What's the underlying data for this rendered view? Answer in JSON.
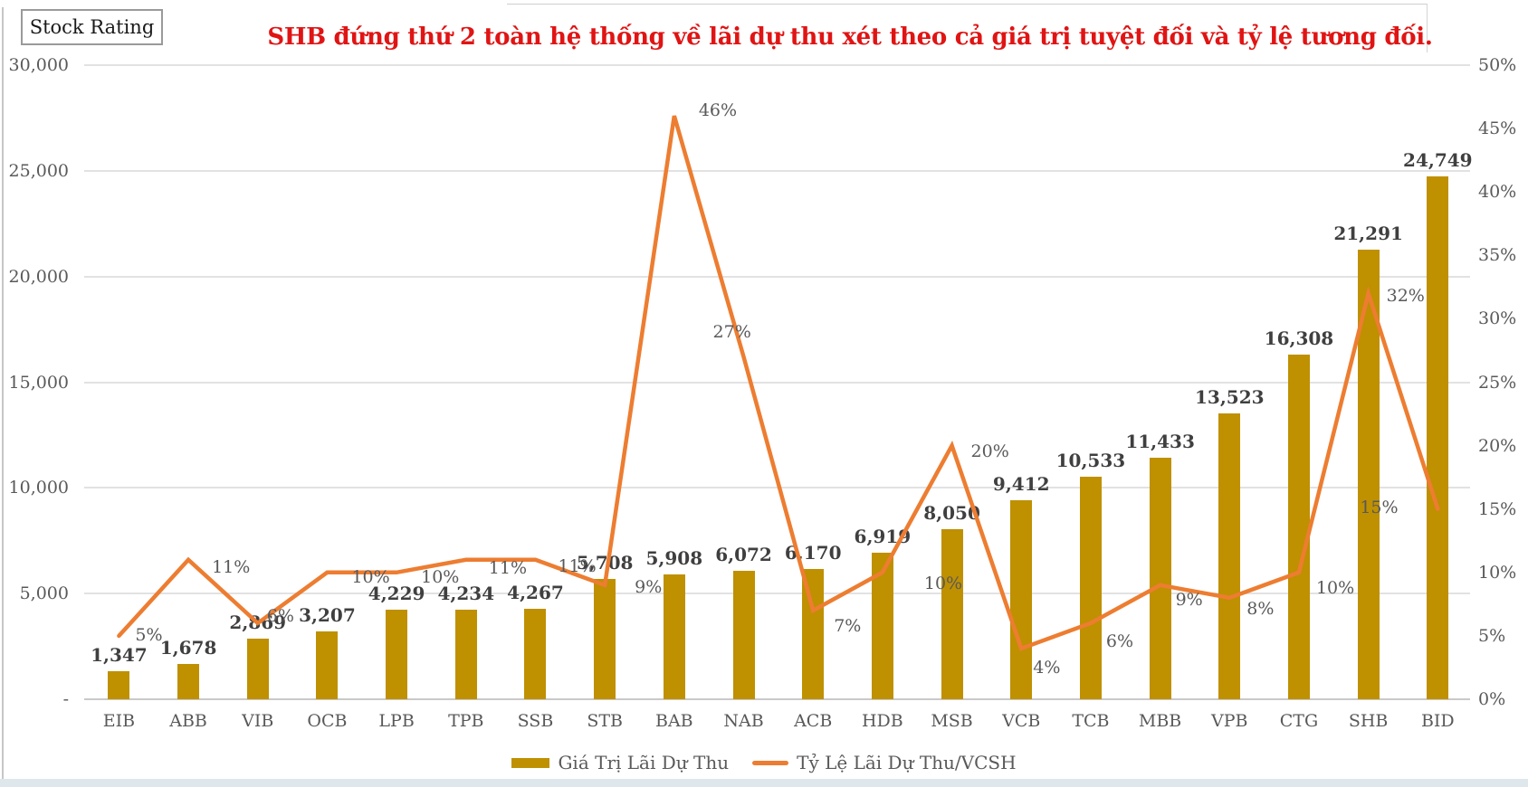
{
  "stock_rating_label": "Stock Rating",
  "title": "SHB đứng thứ 2 toàn hệ thống về lãi dự thu xét theo cả giá trị tuyệt đối và tỷ lệ tương đối.",
  "colors": {
    "bar": "#bf9000",
    "line": "#ed7d31",
    "title": "#e01414",
    "value_label": "#3f3f3f",
    "axis_label": "#595959",
    "gridline": "#e2e2e2",
    "bottom_strip": "#dee8ec"
  },
  "chart_data": {
    "type": "combo-bar-line",
    "title": "SHB đứng thứ 2 toàn hệ thống về lãi dự thu xét theo cả giá trị tuyệt đối và tỷ lệ tương đối.",
    "categories": [
      "EIB",
      "ABB",
      "VIB",
      "OCB",
      "LPB",
      "TPB",
      "SSB",
      "STB",
      "BAB",
      "NAB",
      "ACB",
      "HDB",
      "MSB",
      "VCB",
      "TCB",
      "MBB",
      "VPB",
      "CTG",
      "SHB",
      "BID"
    ],
    "series": [
      {
        "name": "Giá Trị Lãi Dự Thu",
        "type": "bar",
        "yaxis": "left",
        "color": "#bf9000",
        "values": [
          1347,
          1678,
          2869,
          3207,
          4229,
          4234,
          4267,
          5708,
          5908,
          6072,
          6170,
          6919,
          8050,
          9412,
          10533,
          11433,
          13523,
          16308,
          21291,
          24749
        ],
        "labels": [
          "1,347",
          "1,678",
          "2,869",
          "3,207",
          "4,229",
          "4,234",
          "4,267",
          "5,708",
          "5,908",
          "6,072",
          "6,170",
          "6,919",
          "8,050",
          "9,412",
          "10,533",
          "11,433",
          "13,523",
          "16,308",
          "21,291",
          "24,749"
        ]
      },
      {
        "name": "Tỷ Lệ Lãi Dự Thu/VCSH",
        "type": "line",
        "yaxis": "right",
        "color": "#ed7d31",
        "values": [
          5,
          11,
          6,
          10,
          10,
          11,
          11,
          9,
          46,
          27,
          7,
          10,
          20,
          4,
          6,
          9,
          8,
          10,
          32,
          15
        ],
        "labels": [
          "5%",
          "11%",
          "6%",
          "10%",
          "10%",
          "11%",
          "11%",
          "9%",
          "46%",
          "27%",
          "7%",
          "10%",
          "20%",
          "4%",
          "6%",
          "9%",
          "8%",
          "10%",
          "32%",
          "15%"
        ]
      }
    ],
    "left_axis": {
      "min": 0,
      "max": 30000,
      "tick_labels": [
        "30,000",
        "25,000",
        "20,000",
        "15,000",
        "10,000",
        "5,000",
        "-"
      ]
    },
    "right_axis": {
      "min": 0,
      "max": 50,
      "tick_labels": [
        "50%",
        "45%",
        "40%",
        "35%",
        "30%",
        "25%",
        "20%",
        "15%",
        "10%",
        "5%",
        "0%"
      ]
    },
    "grid": true,
    "legend_position": "bottom",
    "legend": [
      "Giá Trị Lãi Dự Thu",
      "Tỷ Lệ Lãi Dự Thu/VCSH"
    ]
  }
}
